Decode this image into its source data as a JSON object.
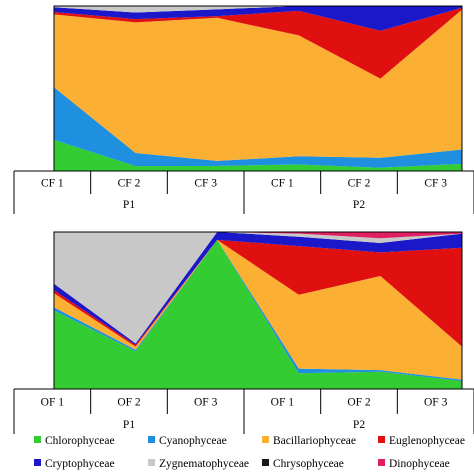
{
  "chart_data": [
    {
      "type": "area",
      "stacking": "percent",
      "categories": [
        "CF 1",
        "CF 2",
        "CF 3",
        "CF 1",
        "CF 2",
        "CF 3"
      ],
      "groups": [
        {
          "label": "P1",
          "categories": [
            "CF 1",
            "CF 2",
            "CF 3"
          ]
        },
        {
          "label": "P2",
          "categories": [
            "CF 1",
            "CF 2",
            "CF 3"
          ]
        }
      ],
      "series": [
        {
          "name": "Chlorophyceae",
          "color": "#33cc33",
          "values": [
            26,
            3,
            3,
            4,
            2,
            4
          ]
        },
        {
          "name": "Cyanophyceae",
          "color": "#1f8fe0",
          "values": [
            44,
            8,
            3,
            5,
            6,
            8
          ]
        },
        {
          "name": "Bacillariophyceae",
          "color": "#fbb034",
          "values": [
            61,
            80,
            85,
            74,
            48,
            78
          ]
        },
        {
          "name": "Euglenophyceae",
          "color": "#e01010",
          "values": [
            2,
            2,
            1,
            15,
            29,
            1
          ]
        },
        {
          "name": "Cryptophyceae",
          "color": "#1a18c9",
          "values": [
            4,
            4,
            4,
            3,
            15,
            1
          ]
        },
        {
          "name": "Zygnematophyceae",
          "color": "#c8c8c8",
          "values": [
            1,
            4,
            2,
            0,
            0,
            0
          ]
        },
        {
          "name": "Chrysophyceae",
          "color": "#1a1a1a",
          "values": [
            0,
            0,
            0,
            0,
            0,
            0
          ]
        },
        {
          "name": "Dinophyceae",
          "color": "#e02060",
          "values": [
            0,
            0,
            0,
            0,
            0,
            0
          ]
        }
      ],
      "ylim": [
        0,
        100
      ],
      "grid": false
    },
    {
      "type": "area",
      "stacking": "percent",
      "categories": [
        "OF 1",
        "OF 2",
        "OF 3",
        "OF 1",
        "OF 2",
        "OF 3"
      ],
      "groups": [
        {
          "label": "P1",
          "categories": [
            "OF 1",
            "OF 2",
            "OF 3"
          ]
        },
        {
          "label": "P2",
          "categories": [
            "OF 1",
            "OF 2",
            "OF 3"
          ]
        }
      ],
      "series": [
        {
          "name": "Chlorophyceae",
          "color": "#33cc33",
          "values": [
            50,
            24,
            95,
            10,
            11,
            5
          ]
        },
        {
          "name": "Cyanophyceae",
          "color": "#1f8fe0",
          "values": [
            2,
            1,
            0,
            3,
            1,
            1
          ]
        },
        {
          "name": "Bacillariophyceae",
          "color": "#fbb034",
          "values": [
            9,
            2,
            0,
            47,
            60,
            21
          ]
        },
        {
          "name": "Euglenophyceae",
          "color": "#e01010",
          "values": [
            2,
            1,
            0,
            31,
            15,
            63
          ]
        },
        {
          "name": "Cryptophyceae",
          "color": "#1a18c9",
          "values": [
            4,
            1,
            5,
            6,
            6,
            9
          ]
        },
        {
          "name": "Zygnematophyceae",
          "color": "#c8c8c8",
          "values": [
            33,
            71,
            0,
            2,
            3,
            0
          ]
        },
        {
          "name": "Chrysophyceae",
          "color": "#1a1a1a",
          "values": [
            0,
            0,
            0,
            0,
            0,
            0
          ]
        },
        {
          "name": "Dinophyceae",
          "color": "#e02060",
          "values": [
            0,
            0,
            0,
            1,
            4,
            1
          ]
        }
      ],
      "ylim": [
        0,
        100
      ],
      "grid": false
    }
  ],
  "legend": {
    "placement": "bottom",
    "items": [
      {
        "label": "Chlorophyceae",
        "color": "#33cc33"
      },
      {
        "label": "Cyanophyceae",
        "color": "#1f8fe0"
      },
      {
        "label": "Bacillariophyceae",
        "color": "#fbb034"
      },
      {
        "label": "Euglenophyceae",
        "color": "#e01010"
      },
      {
        "label": "Cryptophyceae",
        "color": "#1a18c9"
      },
      {
        "label": "Zygnematophyceae",
        "color": "#c8c8c8"
      },
      {
        "label": "Chrysophyceae",
        "color": "#1a1a1a"
      },
      {
        "label": "Dinophyceae",
        "color": "#e02060"
      }
    ]
  }
}
